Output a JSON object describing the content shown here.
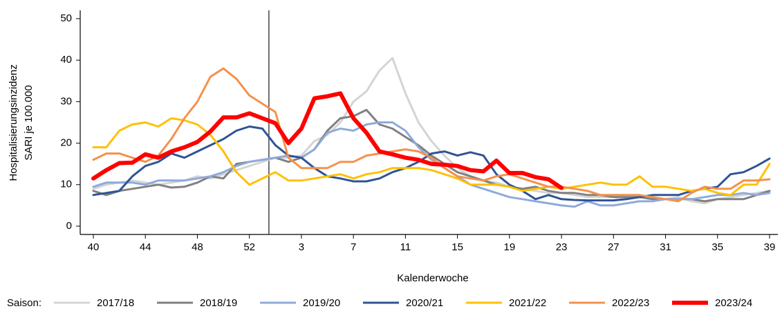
{
  "chart_data": {
    "type": "line",
    "x_label": "Kalenderwoche",
    "y_label": [
      "Hospitalisierungsinzidenz",
      "SARI je 100.000"
    ],
    "legend_title": "Saison:",
    "legend": "bottom",
    "categories": [
      "40",
      null,
      null,
      null,
      "44",
      null,
      null,
      null,
      "48",
      null,
      null,
      null,
      "52",
      null,
      null,
      null,
      "3",
      null,
      null,
      null,
      "7",
      null,
      null,
      null,
      "11",
      null,
      null,
      null,
      "15",
      null,
      null,
      null,
      "19",
      null,
      null,
      null,
      "23",
      null,
      null,
      null,
      "27",
      null,
      null,
      null,
      "31",
      null,
      null,
      null,
      "35",
      null,
      null,
      null,
      "39"
    ],
    "ylim": [
      -2,
      52
    ],
    "yticks": [
      0,
      10,
      20,
      30,
      40,
      50
    ],
    "series": [
      {
        "name": "2017/18",
        "color": "#d4d4d4",
        "linewidth": 3,
        "values": [
          9,
          10,
          10.5,
          11,
          10.5,
          10,
          10.5,
          11,
          12,
          11.5,
          12.5,
          13.5,
          14.5,
          15.5,
          16.5,
          16.5,
          17,
          20.5,
          22,
          25,
          30,
          32.5,
          37.5,
          40.5,
          32,
          25,
          20.5,
          17,
          14,
          12,
          11,
          10.5,
          9.5,
          9,
          8.5,
          8,
          8,
          7.5,
          7,
          7,
          7,
          7,
          7,
          6.5,
          6.5,
          7,
          6,
          5.5,
          6.5,
          7,
          7.5,
          8,
          8.5
        ]
      },
      {
        "name": "2018/19",
        "color": "#808080",
        "linewidth": 3,
        "values": [
          8.5,
          7.5,
          8.5,
          9,
          9.5,
          10,
          9.3,
          9.5,
          10.5,
          12,
          11.5,
          15,
          15.5,
          16,
          16.5,
          15.5,
          16.5,
          18.5,
          23,
          26,
          26.5,
          28,
          24.5,
          23.5,
          21.5,
          19.5,
          17,
          15,
          13,
          12,
          11,
          10,
          9.5,
          9,
          9.5,
          8.5,
          8,
          8,
          7.5,
          7.5,
          7,
          7,
          7,
          6.5,
          6.5,
          6.5,
          6.5,
          6,
          6.5,
          6.5,
          6.5,
          7.5,
          8.5
        ]
      },
      {
        "name": "2019/20",
        "color": "#8eaadb",
        "linewidth": 3,
        "values": [
          9.5,
          10.5,
          10.5,
          10.5,
          10,
          11,
          11,
          11,
          11.5,
          12,
          13,
          14.5,
          15.5,
          16,
          16.5,
          17,
          16.5,
          18.5,
          22.5,
          23.5,
          23,
          24.5,
          25,
          25,
          23,
          19,
          16,
          14,
          12,
          10,
          9,
          8,
          7,
          6.5,
          6,
          5.5,
          5,
          4.7,
          6,
          5,
          5,
          5.5,
          6,
          6,
          6.5,
          6.5,
          6.5,
          7,
          7.5,
          7.5,
          8,
          7.5,
          8
        ]
      },
      {
        "name": "2020/21",
        "color": "#2e5395",
        "linewidth": 3,
        "values": [
          7.5,
          8,
          8.5,
          12,
          14.5,
          15.5,
          17.5,
          16.5,
          18,
          19.5,
          21,
          23,
          24,
          23.5,
          19.5,
          17,
          16.5,
          14,
          12,
          11.5,
          10.8,
          10.8,
          11.5,
          13,
          14,
          15.5,
          17.5,
          18,
          17,
          17.8,
          17,
          12.5,
          10,
          8.5,
          6.5,
          7.5,
          6.5,
          6.3,
          6.2,
          6.2,
          6.2,
          6.5,
          7,
          7.5,
          7.5,
          7.5,
          8.5,
          9,
          9.5,
          12.5,
          13,
          14.5,
          16.3
        ]
      },
      {
        "name": "2021/22",
        "color": "#ffc000",
        "linewidth": 3,
        "values": [
          19,
          19,
          23,
          24.5,
          25,
          24,
          26,
          25.5,
          24.5,
          22,
          18,
          13,
          10,
          11.5,
          13,
          11,
          11,
          11.5,
          12,
          12.5,
          11.5,
          12.5,
          13,
          14,
          14,
          14,
          13.5,
          12.5,
          11.5,
          10,
          10,
          10,
          9.5,
          8.5,
          9,
          9.5,
          9,
          9.5,
          10,
          10.5,
          10,
          10,
          12,
          9.5,
          9.5,
          9,
          8.5,
          9,
          8,
          7.5,
          10,
          10,
          15
        ]
      },
      {
        "name": "2022/23",
        "color": "#f4914a",
        "linewidth": 3,
        "values": [
          16,
          17.5,
          17.5,
          16.5,
          15.5,
          17,
          21,
          26,
          30,
          36,
          38,
          35.5,
          31.5,
          29.5,
          27.5,
          16.5,
          14,
          14,
          14,
          15.5,
          15.5,
          17,
          17.5,
          18,
          18.5,
          18,
          16.5,
          14,
          12,
          11.5,
          11,
          12,
          12.5,
          11.5,
          10.5,
          9.5,
          9.5,
          9,
          8.5,
          7.5,
          7.5,
          7.5,
          7.5,
          7,
          6.5,
          6,
          8,
          9.5,
          9,
          9,
          11,
          11,
          11.3
        ]
      },
      {
        "name": "2023/24",
        "color": "#ff0000",
        "linewidth": 6,
        "values": [
          11.5,
          13.5,
          15.2,
          15.3,
          17.3,
          16.5,
          18,
          19,
          20.3,
          22.8,
          26.2,
          26.2,
          27.2,
          26,
          24.8,
          20,
          23.5,
          30.8,
          31.3,
          32,
          26,
          22.5,
          18,
          17.3,
          16.5,
          16,
          15,
          14.8,
          14.5,
          13.5,
          13.2,
          15.8,
          12.8,
          12.8,
          11.8,
          11.3,
          9.2,
          null,
          null,
          null,
          null,
          null,
          null,
          null,
          null,
          null,
          null,
          null,
          null,
          null,
          null,
          null,
          null
        ]
      }
    ]
  }
}
